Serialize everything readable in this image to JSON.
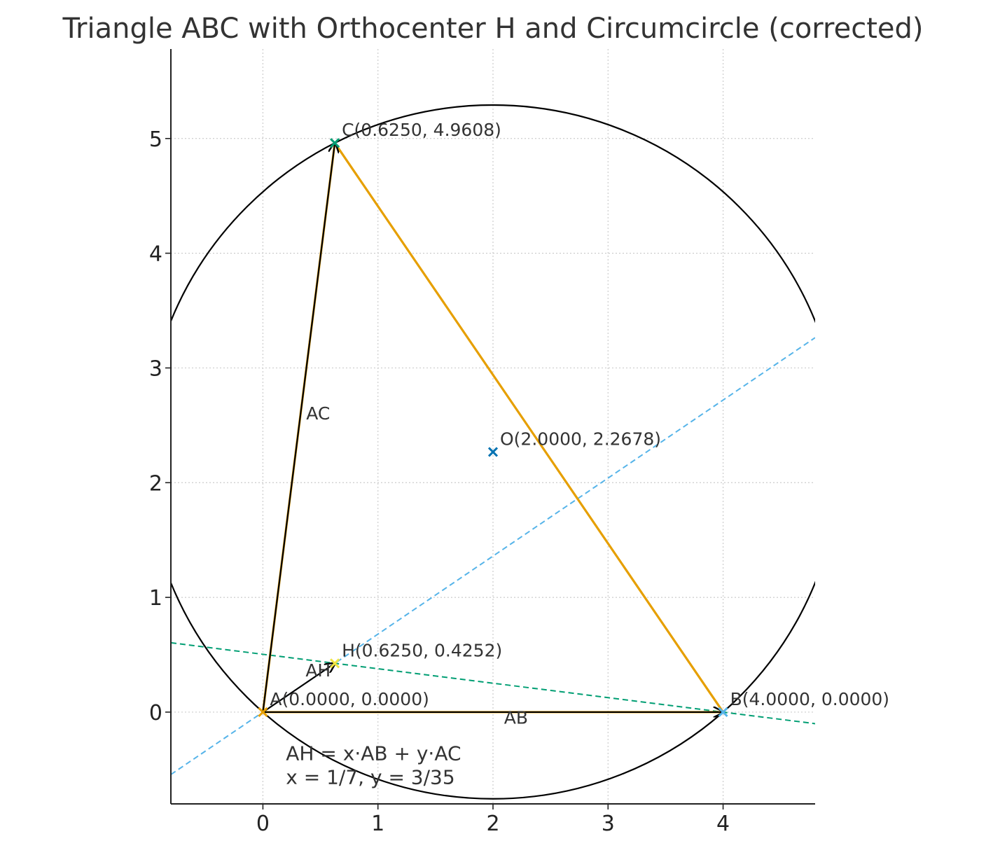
{
  "chart_data": {
    "type": "geometry",
    "title": "Triangle ABC with Orthocenter H and Circumcircle (corrected)",
    "xlim": [
      -0.8,
      4.8
    ],
    "ylim": [
      -0.8,
      5.78
    ],
    "x_ticks": [
      0,
      1,
      2,
      3,
      4
    ],
    "y_ticks": [
      0,
      1,
      2,
      3,
      4,
      5
    ],
    "grid": true,
    "points": [
      {
        "id": "A",
        "x": 0.0,
        "y": 0.0,
        "label": "A(0.0000, 0.0000)",
        "color": "#E69F00"
      },
      {
        "id": "B",
        "x": 4.0,
        "y": 0.0,
        "label": "B(4.0000, 0.0000)",
        "color": "#56B4E9"
      },
      {
        "id": "C",
        "x": 0.625,
        "y": 4.9608,
        "label": "C(0.6250, 4.9608)",
        "color": "#009E73"
      },
      {
        "id": "H",
        "x": 0.625,
        "y": 0.4252,
        "label": "H(0.6250, 0.4252)",
        "color": "#F0E442"
      },
      {
        "id": "O",
        "x": 2.0,
        "y": 2.2678,
        "label": "O(2.0000, 2.2678)",
        "color": "#0072B2"
      }
    ],
    "triangle": {
      "vertices": [
        "A",
        "B",
        "C"
      ],
      "color": "#E69F00"
    },
    "circumcircle": {
      "center": [
        2.0,
        2.2678
      ],
      "radius": 3.0237,
      "color": "#000000"
    },
    "altitude_lines": [
      {
        "name": "AH",
        "from": [
          0.0,
          0.0
        ],
        "slope": 0.68,
        "color": "#56B4E9"
      },
      {
        "name": "BH",
        "from": [
          4.0,
          0.0
        ],
        "slope": -0.126,
        "color": "#009E73"
      }
    ],
    "vectors": [
      {
        "name": "AB",
        "from": [
          0,
          0
        ],
        "to": [
          4.0,
          0.0
        ],
        "label": "AB",
        "label_at": [
          2.2,
          -0.1
        ]
      },
      {
        "name": "AC",
        "from": [
          0,
          0
        ],
        "to": [
          0.625,
          4.9608
        ],
        "label": "AC",
        "label_at": [
          0.48,
          2.55
        ]
      },
      {
        "name": "AH",
        "from": [
          0,
          0
        ],
        "to": [
          0.625,
          0.4252
        ],
        "label": "AH",
        "label_at": [
          0.48,
          0.31
        ]
      }
    ],
    "annotation": {
      "line1": "AH = x·AB + y·AC",
      "line2": "x = 1/7,  y = 3/35",
      "at": [
        0.2,
        -0.42
      ]
    }
  }
}
